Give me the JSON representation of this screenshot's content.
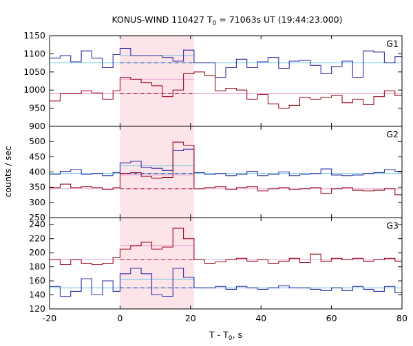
{
  "chart_data": {
    "type": "line",
    "title_main": "KONUS-WIND 110427 T",
    "title_sub": "0",
    "title_rest": " = 71063s UT (19:44:23.000)",
    "xlabel_main": "T - T",
    "xlabel_sub": "0",
    "xlabel_rest": ", s",
    "ylabel": "counts / sec",
    "xlim": [
      -20,
      80
    ],
    "x_ticks": [
      "-20",
      "0",
      "20",
      "40",
      "60",
      "80"
    ],
    "x_tick_values": [
      -20,
      0,
      20,
      40,
      60,
      80
    ],
    "grid": false,
    "highlight_interval": [
      0,
      21
    ],
    "colors": {
      "blue": "#2e2ea8",
      "red": "#9b0b1e",
      "light_blue": "#66c8e6",
      "pink": "#e6a0d2",
      "shade": "#fde4e8",
      "axis": "#000000"
    },
    "panels": [
      {
        "label": "G1",
        "ylim": [
          900,
          1150
        ],
        "y_ticks": [
          900,
          950,
          1000,
          1050,
          1100,
          1150
        ],
        "y_tick_labels": [
          "900",
          "950",
          "1000",
          "1050",
          "1100",
          "1150"
        ],
        "bin_edges": [
          -20,
          -17,
          -14,
          -11,
          -8,
          -5,
          -2,
          0,
          3,
          6,
          9,
          12,
          15,
          18,
          21,
          24,
          27,
          30,
          33,
          36,
          39,
          42,
          45,
          48,
          51,
          54,
          57,
          60,
          63,
          66,
          69,
          72,
          75,
          78,
          80
        ],
        "series": [
          {
            "color": "blue",
            "values": [
              1088,
              1095,
              1078,
              1108,
              1088,
              1062,
              1098,
              1115,
              1095,
              1095,
              1095,
              1090,
              1080,
              1110,
              1075,
              1075,
              1035,
              1062,
              1085,
              1062,
              1078,
              1090,
              1060,
              1080,
              1082,
              1068,
              1045,
              1065,
              1080,
              1035,
              1108,
              1105,
              1075,
              1092
            ],
            "background_level": 1075,
            "signal_level": 1095
          },
          {
            "color": "red",
            "values": [
              970,
              990,
              990,
              998,
              992,
              975,
              998,
              1035,
              1030,
              1020,
              1012,
              982,
              1000,
              1045,
              1050,
              1040,
              998,
              1005,
              1000,
              975,
              988,
              962,
              950,
              958,
              980,
              975,
              980,
              985,
              965,
              975,
              960,
              982,
              998,
              985
            ],
            "background_level": 990,
            "signal_level": 1030
          }
        ]
      },
      {
        "label": "G2",
        "ylim": [
          250,
          550
        ],
        "y_ticks": [
          250,
          300,
          350,
          400,
          450,
          500
        ],
        "y_tick_labels": [
          "250",
          "300",
          "350",
          "400",
          "450",
          "500"
        ],
        "bin_edges": [
          -20,
          -17,
          -14,
          -11,
          -8,
          -5,
          -2,
          0,
          3,
          6,
          9,
          12,
          15,
          18,
          21,
          24,
          27,
          30,
          33,
          36,
          39,
          42,
          45,
          48,
          51,
          54,
          57,
          60,
          63,
          66,
          69,
          72,
          75,
          78,
          80
        ],
        "series": [
          {
            "color": "blue",
            "values": [
              392,
              402,
              408,
              392,
              395,
              388,
              398,
              430,
              435,
              415,
              412,
              405,
              470,
              475,
              398,
              392,
              395,
              388,
              392,
              402,
              388,
              392,
              400,
              388,
              392,
              395,
              410,
              390,
              388,
              390,
              395,
              398,
              408,
              402
            ],
            "background_level": 395,
            "signal_level": 420
          },
          {
            "color": "red",
            "values": [
              348,
              360,
              348,
              352,
              348,
              342,
              348,
              395,
              398,
              385,
              380,
              382,
              498,
              488,
              345,
              348,
              352,
              342,
              348,
              352,
              338,
              345,
              348,
              342,
              345,
              348,
              330,
              345,
              348,
              340,
              338,
              340,
              345,
              325
            ],
            "background_level": 345,
            "signal_level": 390
          }
        ]
      },
      {
        "label": "G3",
        "ylim": [
          120,
          250
        ],
        "y_ticks": [
          120,
          140,
          160,
          180,
          200,
          220,
          240
        ],
        "y_tick_labels": [
          "120",
          "140",
          "160",
          "180",
          "200",
          "220",
          "240"
        ],
        "bin_edges": [
          -20,
          -17,
          -14,
          -11,
          -8,
          -5,
          -2,
          0,
          3,
          6,
          9,
          12,
          15,
          18,
          21,
          24,
          27,
          30,
          33,
          36,
          39,
          42,
          45,
          48,
          51,
          54,
          57,
          60,
          63,
          66,
          69,
          72,
          75,
          78,
          80
        ],
        "series": [
          {
            "color": "blue",
            "values": [
              152,
              138,
              145,
              163,
              140,
              160,
              145,
              170,
              178,
              170,
              140,
              138,
              178,
              165,
              150,
              150,
              152,
              148,
              152,
              150,
              148,
              150,
              153,
              150,
              150,
              148,
              146,
              150,
              146,
              152,
              148,
              145,
              152,
              143
            ],
            "background_level": 150,
            "signal_level": 162
          },
          {
            "color": "red",
            "values": [
              190,
              183,
              190,
              185,
              183,
              185,
              193,
              205,
              210,
              215,
              205,
              208,
              235,
              220,
              190,
              185,
              187,
              190,
              192,
              188,
              190,
              185,
              188,
              192,
              186,
              198,
              188,
              192,
              190,
              192,
              188,
              190,
              192,
              188
            ],
            "background_level": 190,
            "signal_level": 210
          }
        ]
      }
    ]
  }
}
